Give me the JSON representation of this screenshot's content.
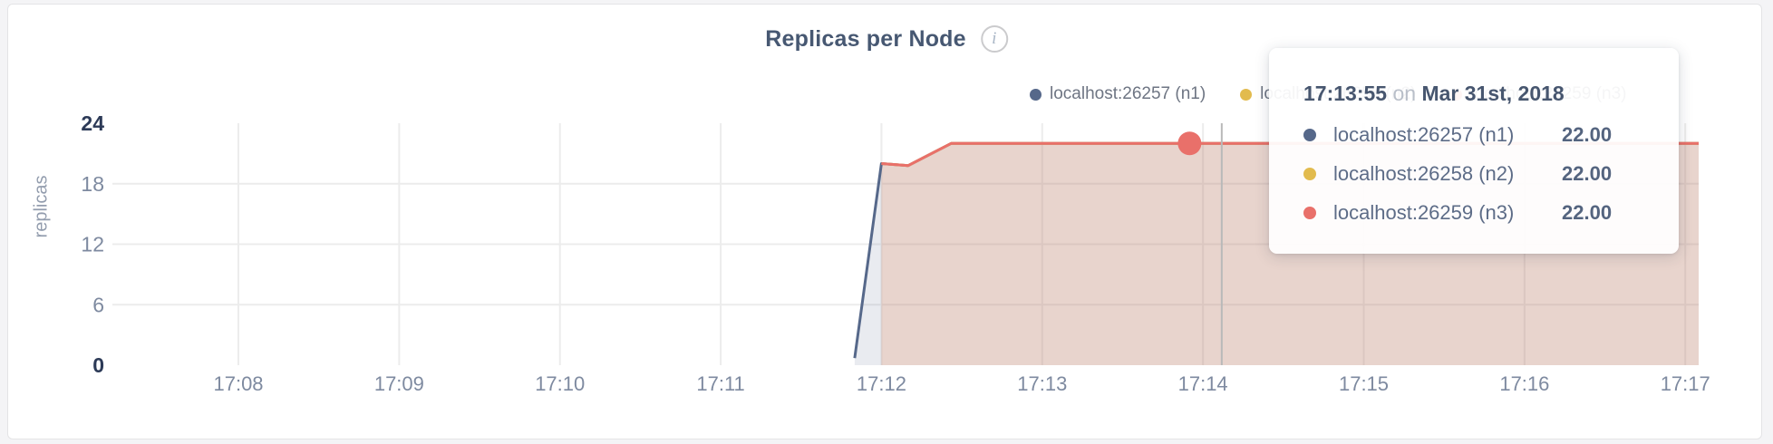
{
  "header": {
    "title": "Replicas per Node",
    "info_icon": "i"
  },
  "legend": {
    "items": [
      {
        "label": "localhost:26257 (n1)",
        "color": "#56688a"
      },
      {
        "label": "localhost:26258 (n2)",
        "color": "#e2bb4e"
      },
      {
        "label": "localhost:26259 (n3)",
        "color": "#e9706a"
      }
    ]
  },
  "tooltip": {
    "time": "17:13:55",
    "on_word": "on",
    "date": "Mar 31st, 2018",
    "rows": [
      {
        "name": "localhost:26257 (n1)",
        "value": "22.00",
        "color": "#56688a"
      },
      {
        "name": "localhost:26258 (n2)",
        "value": "22.00",
        "color": "#e2bb4e"
      },
      {
        "name": "localhost:26259 (n3)",
        "value": "22.00",
        "color": "#e9706a"
      }
    ]
  },
  "chart_data": {
    "type": "area",
    "title": "Replicas per Node",
    "xlabel": "",
    "ylabel": "replicas",
    "x_ticks": [
      "17:08",
      "17:09",
      "17:10",
      "17:11",
      "17:12",
      "17:13",
      "17:14",
      "17:15",
      "17:16",
      "17:17"
    ],
    "y_ticks": [
      0,
      6,
      12,
      18,
      24
    ],
    "x_domain": [
      "17:07:15",
      "17:17:05"
    ],
    "y_domain": [
      0,
      24
    ],
    "grid": true,
    "legend_position": "top-right",
    "series": [
      {
        "name": "localhost:26257 (n1)",
        "color": "#56688a",
        "fill_opacity": 0.13,
        "points": [
          [
            "17:11:50",
            0.7
          ],
          [
            "17:12:00",
            20
          ],
          [
            "17:12:10",
            19.8
          ],
          [
            "17:12:26",
            22
          ],
          [
            "17:13:55",
            22
          ],
          [
            "17:17:05",
            22
          ]
        ]
      },
      {
        "name": "localhost:26258 (n2)",
        "color": "#e2bb4e",
        "fill_opacity": 0.1,
        "points": [
          [
            "17:12:00",
            20
          ],
          [
            "17:12:10",
            19.8
          ],
          [
            "17:12:26",
            22
          ],
          [
            "17:13:55",
            22
          ],
          [
            "17:17:05",
            22
          ]
        ]
      },
      {
        "name": "localhost:26259 (n3)",
        "color": "#e9706a",
        "fill_opacity": 0.15,
        "points": [
          [
            "17:12:00",
            20
          ],
          [
            "17:12:10",
            19.8
          ],
          [
            "17:12:26",
            22
          ],
          [
            "17:13:55",
            22
          ],
          [
            "17:17:05",
            22
          ]
        ]
      }
    ],
    "hover": {
      "guideline_time": "17:14:07",
      "point": {
        "series": "localhost:26259 (n3)",
        "time": "17:13:55",
        "value": 22,
        "color": "#e9706a"
      }
    }
  }
}
